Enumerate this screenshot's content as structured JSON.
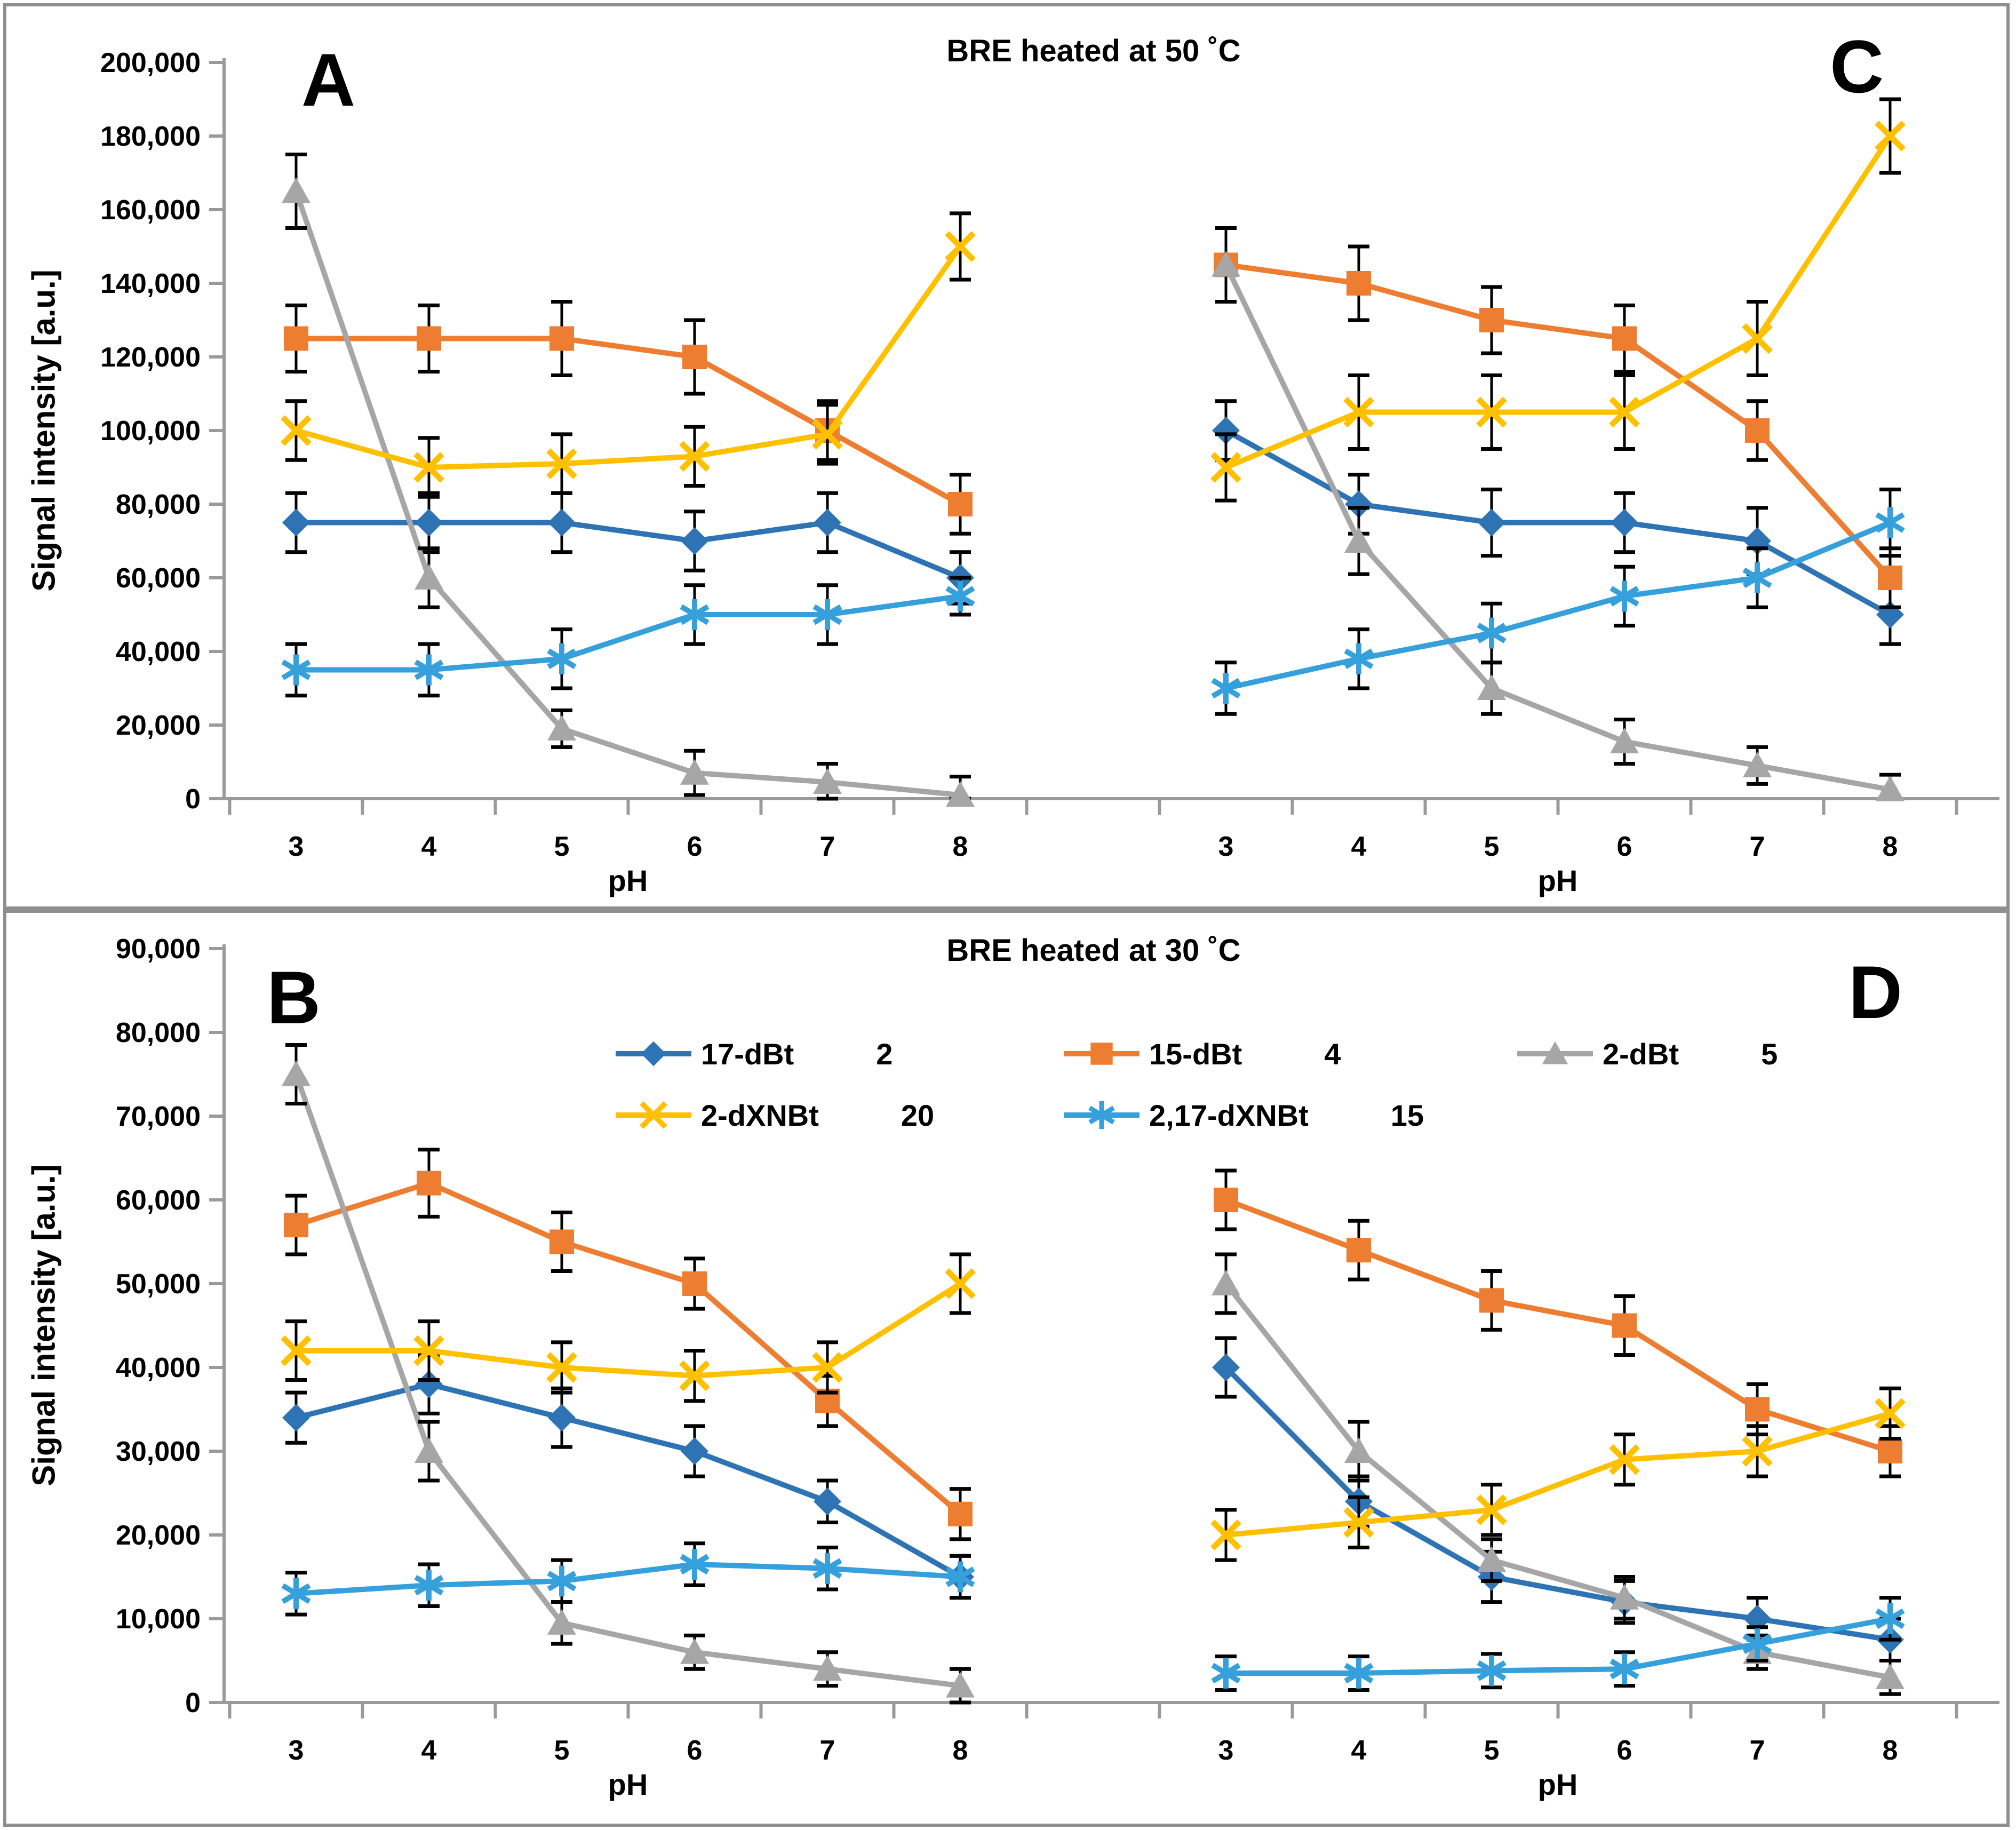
{
  "page": {
    "background": "#ffffff",
    "border_color": "#8f8f8f",
    "axis_color": "#9a9a9a",
    "error_bar_color": "#000000"
  },
  "series_styles": [
    {
      "name": "17-dBt",
      "color": "#2E74B5",
      "marker": "diamond"
    },
    {
      "name": "15-dBt",
      "color": "#ED7D31",
      "marker": "square"
    },
    {
      "name": "2-dBt",
      "color": "#A6A6A6",
      "marker": "triangle"
    },
    {
      "name": "2-dXNBt",
      "color": "#FFC000",
      "marker": "x"
    },
    {
      "name": "2,17-dXNBt",
      "color": "#35A0DB",
      "marker": "asterisk"
    }
  ],
  "legend": {
    "items": [
      {
        "label": "17-dBt",
        "qty": "2",
        "style": 0
      },
      {
        "label": "15-dBt",
        "qty": "4",
        "style": 1
      },
      {
        "label": "2-dBt",
        "qty": "5",
        "style": 2
      },
      {
        "label": "2-dXNBt",
        "qty": "20",
        "style": 3
      },
      {
        "label": "2,17-dXNBt",
        "qty": "15",
        "style": 4
      }
    ]
  },
  "chart_data": [
    {
      "id": "top",
      "type": "line",
      "title": "BRE heated at 50 ˚C",
      "ylabel": "Signal intensity [a.u.]",
      "xlabel": "pH",
      "ylim": [
        0,
        200000
      ],
      "ytick_step": 20000,
      "ytick_labels": [
        "0",
        "20,000",
        "40,000",
        "60,000",
        "80,000",
        "100,000",
        "120,000",
        "140,000",
        "160,000",
        "180,000",
        "200,000"
      ],
      "x_categories": [
        "3",
        "4",
        "5",
        "6",
        "7",
        "8"
      ],
      "grid": false,
      "error_bars": true,
      "panels": [
        {
          "label": "A",
          "series": [
            {
              "name": "17-dBt",
              "values": [
                75000,
                75000,
                75000,
                70000,
                75000,
                60000
              ],
              "err": [
                8000,
                8000,
                8000,
                8000,
                8000,
                7000
              ]
            },
            {
              "name": "15-dBt",
              "values": [
                125000,
                125000,
                125000,
                120000,
                100000,
                80000
              ],
              "err": [
                9000,
                9000,
                10000,
                10000,
                8000,
                8000
              ]
            },
            {
              "name": "2-dBt",
              "values": [
                165000,
                60000,
                19000,
                7000,
                4500,
                1000
              ],
              "err": [
                10000,
                8000,
                5000,
                6000,
                5000,
                5000
              ]
            },
            {
              "name": "2-dXNBt",
              "values": [
                100000,
                90000,
                91000,
                93000,
                99000,
                150000
              ],
              "err": [
                8000,
                8000,
                8000,
                8000,
                8000,
                9000
              ]
            },
            {
              "name": "2,17-dXNBt",
              "values": [
                35000,
                35000,
                38000,
                50000,
                50000,
                55000
              ],
              "err": [
                7000,
                7000,
                8000,
                8000,
                8000,
                5000
              ]
            }
          ]
        },
        {
          "label": "C",
          "series": [
            {
              "name": "17-dBt",
              "values": [
                100000,
                80000,
                75000,
                75000,
                70000,
                50000
              ],
              "err": [
                8000,
                8000,
                9000,
                8000,
                9000,
                8000
              ]
            },
            {
              "name": "15-dBt",
              "values": [
                145000,
                140000,
                130000,
                125000,
                100000,
                60000
              ],
              "err": [
                10000,
                10000,
                9000,
                9000,
                8000,
                8000
              ]
            },
            {
              "name": "2-dBt",
              "values": [
                145000,
                70000,
                30000,
                15500,
                9000,
                2500
              ],
              "err": [
                10000,
                9000,
                7000,
                6000,
                5000,
                4000
              ]
            },
            {
              "name": "2-dXNBt",
              "values": [
                90000,
                105000,
                105000,
                105000,
                125000,
                180000
              ],
              "err": [
                9000,
                10000,
                10000,
                10000,
                10000,
                10000
              ]
            },
            {
              "name": "2,17-dXNBt",
              "values": [
                30000,
                38000,
                45000,
                55000,
                60000,
                75000
              ],
              "err": [
                7000,
                8000,
                8000,
                8000,
                8000,
                9000
              ]
            }
          ]
        }
      ]
    },
    {
      "id": "bottom",
      "type": "line",
      "title": "BRE heated at 30 ˚C",
      "ylabel": "Signal intensity [a.u.]",
      "xlabel": "pH",
      "ylim": [
        0,
        90000
      ],
      "ytick_step": 10000,
      "ytick_labels": [
        "0",
        "10,000",
        "20,000",
        "30,000",
        "40,000",
        "50,000",
        "60,000",
        "70,000",
        "80,000",
        "90,000"
      ],
      "x_categories": [
        "3",
        "4",
        "5",
        "6",
        "7",
        "8"
      ],
      "grid": false,
      "error_bars": true,
      "panels": [
        {
          "label": "B",
          "series": [
            {
              "name": "17-dBt",
              "values": [
                34000,
                38000,
                34000,
                30000,
                24000,
                15000
              ],
              "err": [
                3000,
                3500,
                3500,
                3000,
                2500,
                2500
              ]
            },
            {
              "name": "15-dBt",
              "values": [
                57000,
                62000,
                55000,
                50000,
                36000,
                22500
              ],
              "err": [
                3500,
                4000,
                3500,
                3000,
                3000,
                3000
              ]
            },
            {
              "name": "2-dBt",
              "values": [
                75000,
                30000,
                9500,
                6000,
                4000,
                2000
              ],
              "err": [
                3500,
                3500,
                2500,
                2000,
                2000,
                2000
              ]
            },
            {
              "name": "2-dXNBt",
              "values": [
                42000,
                42000,
                40000,
                39000,
                40000,
                50000
              ],
              "err": [
                3500,
                3500,
                3000,
                3000,
                3000,
                3500
              ]
            },
            {
              "name": "2,17-dXNBt",
              "values": [
                13000,
                14000,
                14500,
                16500,
                16000,
                15000
              ],
              "err": [
                2500,
                2500,
                2500,
                2500,
                2500,
                2500
              ]
            }
          ]
        },
        {
          "label": "D",
          "series": [
            {
              "name": "17-dBt",
              "values": [
                40000,
                24000,
                15000,
                12000,
                10000,
                7500
              ],
              "err": [
                3500,
                3000,
                3000,
                2500,
                2500,
                2500
              ]
            },
            {
              "name": "15-dBt",
              "values": [
                60000,
                54000,
                48000,
                45000,
                35000,
                30000
              ],
              "err": [
                3500,
                3500,
                3500,
                3500,
                3000,
                3000
              ]
            },
            {
              "name": "2-dBt",
              "values": [
                50000,
                30000,
                17000,
                12500,
                6000,
                3000
              ],
              "err": [
                3500,
                3500,
                2500,
                2500,
                2000,
                2000
              ]
            },
            {
              "name": "2-dXNBt",
              "values": [
                20000,
                21500,
                23000,
                29000,
                30000,
                34500
              ],
              "err": [
                3000,
                3000,
                3000,
                3000,
                3000,
                3000
              ]
            },
            {
              "name": "2,17-dXNBt",
              "values": [
                3500,
                3500,
                3800,
                4000,
                7000,
                10000
              ],
              "err": [
                2000,
                2000,
                2000,
                2000,
                2000,
                2500
              ]
            }
          ]
        }
      ]
    }
  ]
}
